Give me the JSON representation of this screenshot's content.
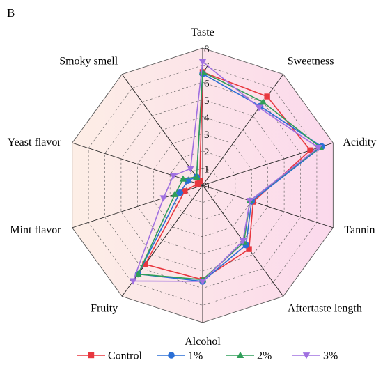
{
  "panel_label": "B",
  "chart_data": {
    "type": "radar",
    "axes": [
      "Taste",
      "Sweetness",
      "Acidity",
      "Tannin",
      "Aftertaste length",
      "Alcohol",
      "Fruity",
      "Mint flavor",
      "Yeast flavor",
      "Smoky smell"
    ],
    "rlim": [
      0,
      8
    ],
    "ticks": [
      "0",
      "1",
      "2",
      "3",
      "4",
      "5",
      "6",
      "7",
      "8"
    ],
    "grid": true,
    "legend_position": "bottom",
    "colors": {
      "background_left": "#fdeee6",
      "background_right": "#fbd9ec",
      "grid": "#555555"
    },
    "series": [
      {
        "name": "Control",
        "color": "#e8373f",
        "marker": "square",
        "values": [
          6.6,
          6.4,
          6.6,
          3.1,
          4.6,
          5.5,
          5.7,
          1.1,
          0.3,
          0.3
        ]
      },
      {
        "name": "1%",
        "color": "#2a6fd6",
        "marker": "circle",
        "values": [
          6.5,
          5.7,
          7.3,
          3.0,
          4.3,
          5.6,
          6.4,
          1.4,
          0.9,
          0.6
        ]
      },
      {
        "name": "2%",
        "color": "#2f9e58",
        "marker": "triangle-up",
        "values": [
          6.6,
          6.0,
          7.2,
          2.9,
          4.1,
          5.5,
          6.4,
          1.7,
          1.2,
          0.6
        ]
      },
      {
        "name": "3%",
        "color": "#a070e0",
        "marker": "triangle-down",
        "values": [
          7.2,
          5.6,
          7.1,
          2.9,
          4.0,
          5.6,
          6.9,
          2.4,
          1.8,
          1.2
        ]
      }
    ]
  }
}
